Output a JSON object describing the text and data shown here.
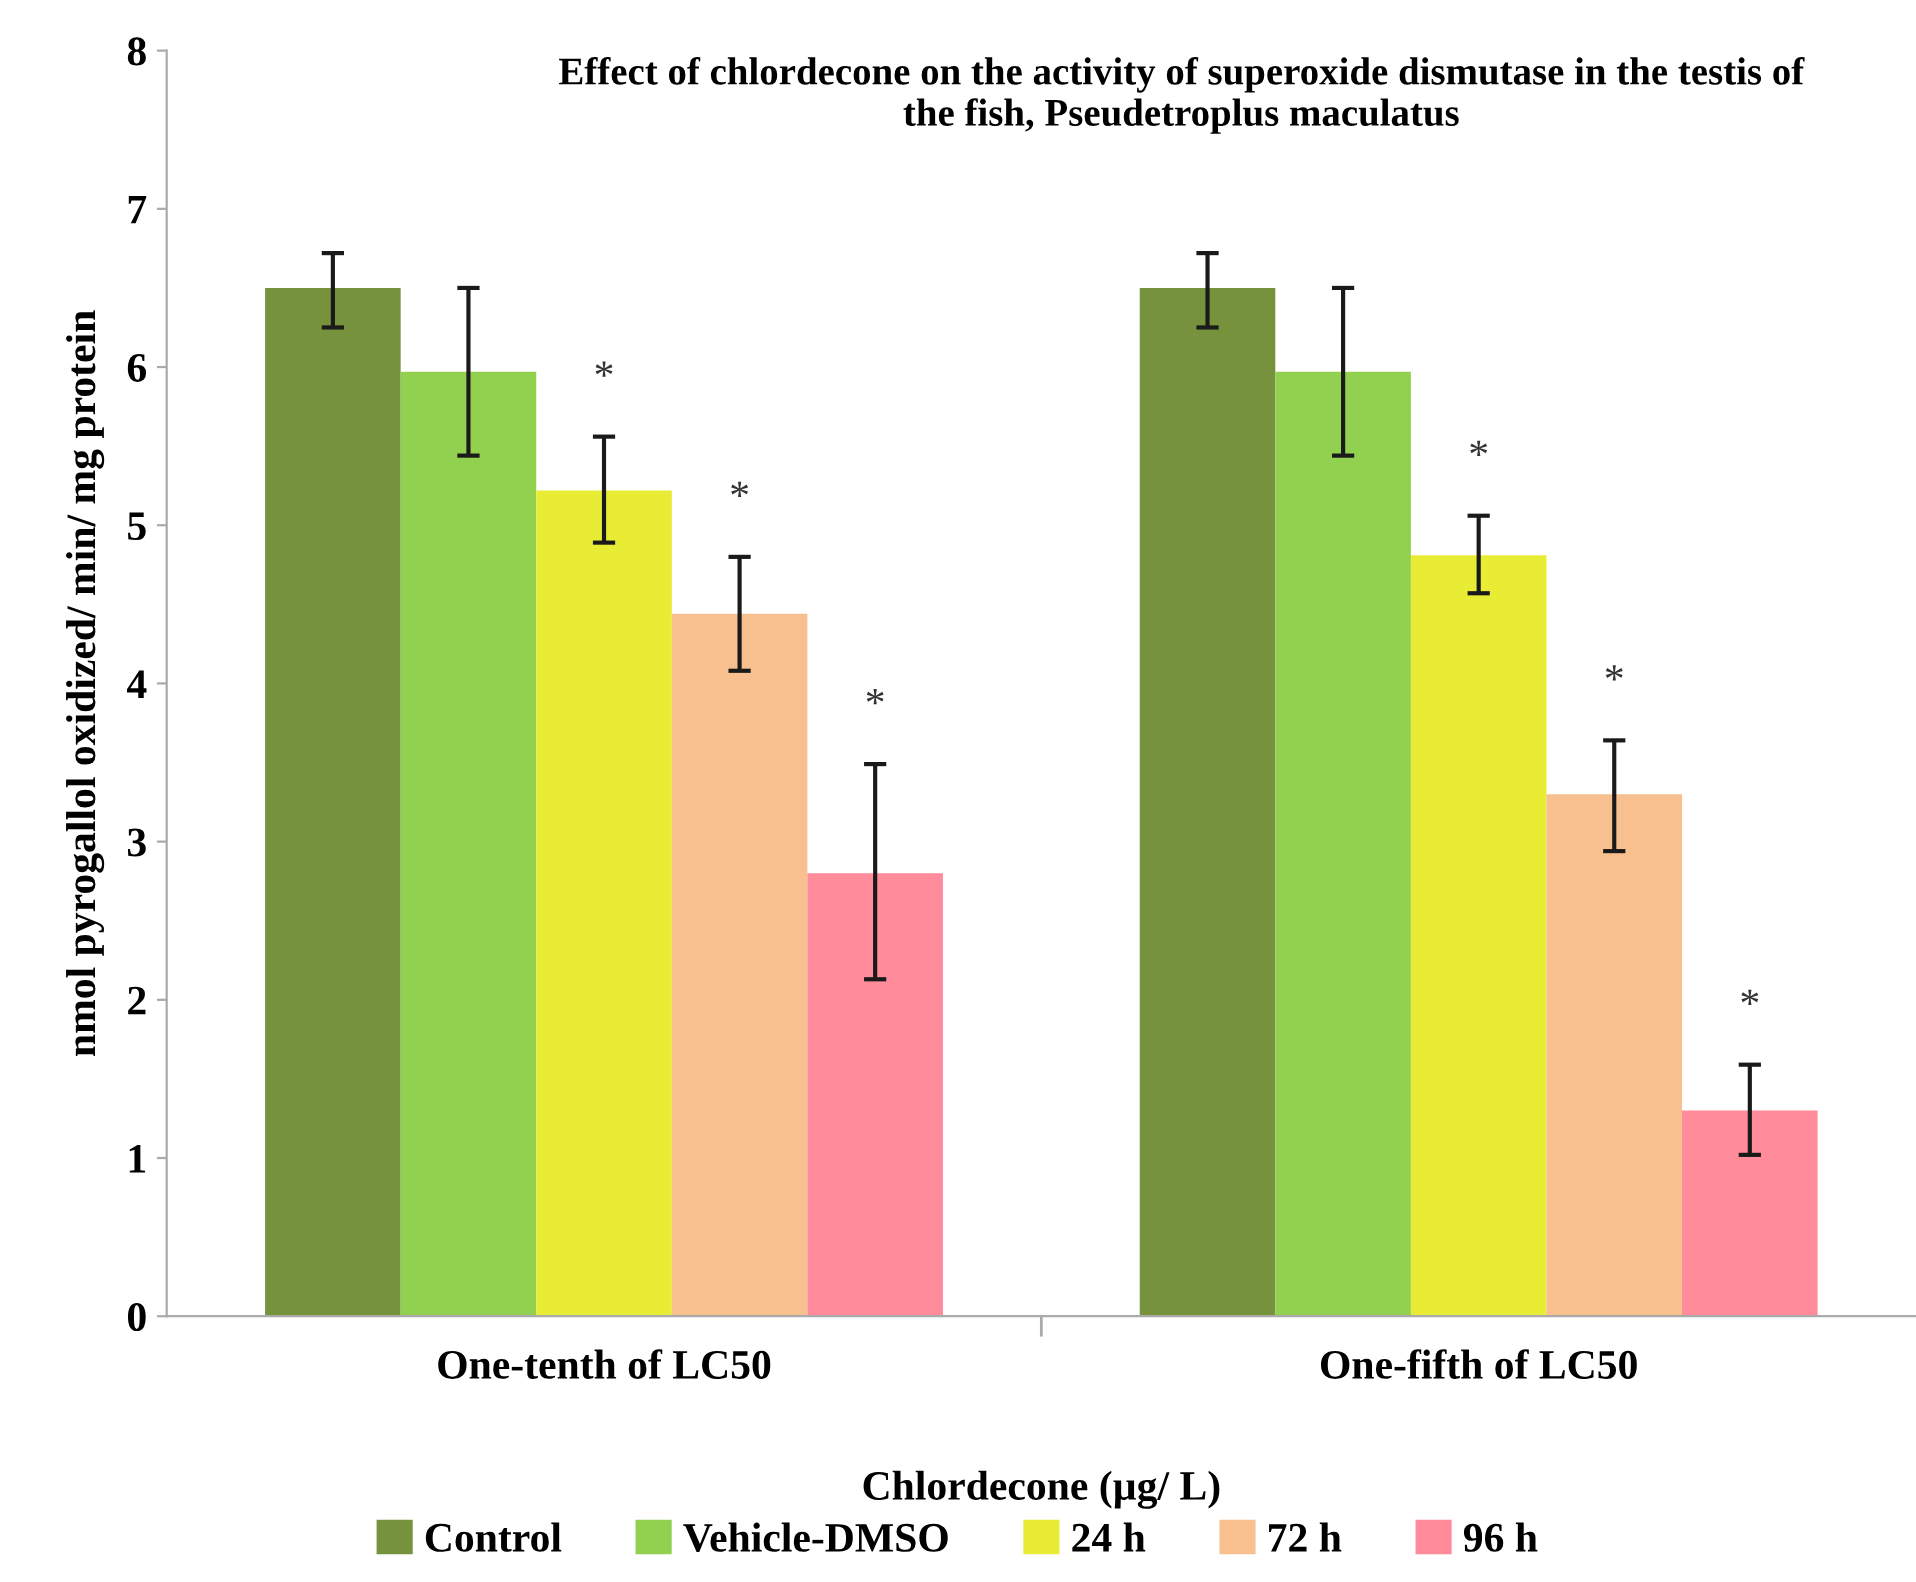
{
  "chart_data": {
    "type": "bar",
    "title": "Effect of chlordecone on the activity of superoxide dismutase in the testis of the fish, Pseudetroplus maculatus",
    "xlabel": "Chlordecone (µg/ L)",
    "ylabel": "nmol pyrogallol oxidized/ min/ mg protein",
    "categories": [
      "One-tenth of LC50",
      "One-fifth of LC50"
    ],
    "series": [
      {
        "name": "Control",
        "color": "#76923c",
        "values": [
          6.5,
          6.5
        ],
        "errors": [
          [
            6.25,
            6.72
          ],
          [
            6.25,
            6.72
          ]
        ]
      },
      {
        "name": "Vehicle-DMSO",
        "color": "#92d050",
        "values": [
          5.97,
          5.97
        ],
        "errors": [
          [
            5.44,
            6.5
          ],
          [
            5.44,
            6.5
          ]
        ]
      },
      {
        "name": "24 h",
        "color": "#e8ec34",
        "values": [
          5.22,
          4.81
        ],
        "errors": [
          [
            4.89,
            5.56
          ],
          [
            4.57,
            5.06
          ]
        ]
      },
      {
        "name": "72 h",
        "color": "#f8c08e",
        "values": [
          4.44,
          3.3
        ],
        "errors": [
          [
            4.08,
            4.8
          ],
          [
            2.94,
            3.64
          ]
        ]
      },
      {
        "name": "96 h",
        "color": "#ff8b9b",
        "values": [
          2.8,
          1.3
        ],
        "errors": [
          [
            2.13,
            3.49
          ],
          [
            1.02,
            1.59
          ]
        ]
      }
    ],
    "annotations": [
      "*",
      "*",
      "*",
      "*",
      "*",
      "*"
    ],
    "ylim": [
      0,
      8
    ],
    "yticks": [
      0,
      1,
      2,
      3,
      4,
      5,
      6,
      7,
      8
    ],
    "grid": false,
    "legend": "bottom"
  }
}
